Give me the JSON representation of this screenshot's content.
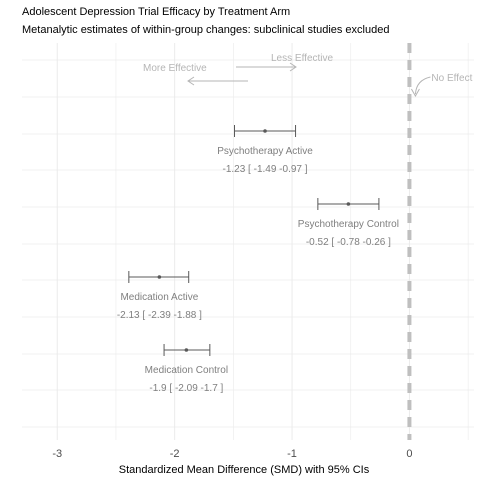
{
  "chart_data": {
    "type": "forest",
    "title": "Adolescent Depression Trial Efficacy by Treatment Arm",
    "subtitle": "Metanalytic estimates of within-group changes: subclinical studies excluded",
    "xlabel": "Standardized Mean Difference (SMD) with 95% CIs",
    "xlim": [
      -3.3,
      0.55
    ],
    "xticks": [
      -3,
      -2,
      -1,
      0
    ],
    "xtick_labels": [
      "-3",
      "-2",
      "-1",
      "0"
    ],
    "grid": true,
    "reference_line": {
      "x": 0,
      "style": "dashed",
      "label": "No Effect"
    },
    "direction_labels": {
      "left": "More Effective",
      "right": "Less Effective"
    },
    "rows": [
      {
        "name": "Psychotherapy Active",
        "estimate": -1.23,
        "lower": -1.49,
        "upper": -0.97,
        "ci_text": "-1.23 [ -1.49 -0.97 ]"
      },
      {
        "name": "Psychotherapy Control",
        "estimate": -0.52,
        "lower": -0.78,
        "upper": -0.26,
        "ci_text": "-0.52 [ -0.78 -0.26 ]"
      },
      {
        "name": "Medication Active",
        "estimate": -2.13,
        "lower": -2.39,
        "upper": -1.88,
        "ci_text": "-2.13 [ -2.39 -1.88 ]"
      },
      {
        "name": "Medication Control",
        "estimate": -1.9,
        "lower": -2.09,
        "upper": -1.7,
        "ci_text": "-1.9 [ -2.09 -1.7 ]"
      }
    ],
    "colors": {
      "point": "#595959",
      "reference": "#bfbfbf",
      "annotation": "#7f7f7f",
      "grid": "#ebebeb"
    }
  }
}
